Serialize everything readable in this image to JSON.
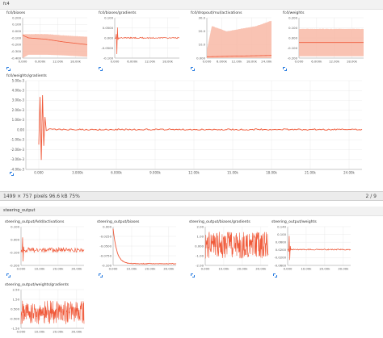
{
  "viewer": {
    "info": "1499 × 757 pixels  96.6 kB  75%",
    "page": "2 / 9"
  },
  "sections": {
    "top": "fc4",
    "bottom": "steering_output"
  },
  "colors": {
    "series": "#f05a3a",
    "band": "#f8b9a6",
    "grid": "#e6e6e6",
    "axis": "#999999",
    "icon": "#2a7de1"
  },
  "chart_data": [
    {
      "id": "fc4-biases",
      "type": "area",
      "title": "fc4/biases",
      "x_ticks": [
        "0.000",
        "6.000k",
        "12.00k",
        "18.00k"
      ],
      "xlim": [
        0,
        22000
      ],
      "y_ticks": [
        "0.200",
        "0.100",
        "0.000",
        "-0.100",
        "-0.200",
        "-0.300",
        "-0.400"
      ],
      "ylim": [
        -0.4,
        0.2
      ],
      "band_upper": [
        [
          0,
          -0.04
        ],
        [
          2000,
          -0.04
        ],
        [
          8000,
          -0.04
        ],
        [
          14000,
          -0.06
        ],
        [
          22000,
          -0.08
        ]
      ],
      "band_lower": [
        [
          0,
          -0.4
        ],
        [
          2000,
          -0.35
        ],
        [
          8000,
          -0.35
        ],
        [
          14000,
          -0.36
        ],
        [
          22000,
          -0.38
        ]
      ],
      "line": [
        [
          0,
          -0.06
        ],
        [
          2000,
          -0.1
        ],
        [
          8000,
          -0.12
        ],
        [
          14000,
          -0.16
        ],
        [
          22000,
          -0.2
        ]
      ]
    },
    {
      "id": "fc4-biases-gradients",
      "type": "line",
      "title": "fc4/biases/gradients",
      "x_ticks": [
        "0.000",
        "6.000k",
        "12.00k",
        "18.00k"
      ],
      "xlim": [
        0,
        22000
      ],
      "y_ticks": [
        "0.100",
        "0.0500",
        "0.000",
        "-0.0500",
        "-0.100"
      ],
      "ylim": [
        -0.1,
        0.1
      ],
      "spike_at": 800,
      "spike_range": [
        -0.1,
        0.08
      ],
      "steady": 0.0,
      "noise": 0.003
    },
    {
      "id": "fc4-dropout-activations",
      "type": "area",
      "title": "fc4/dropout/mul/activations",
      "x_ticks": [
        "0.000",
        "6.000k",
        "12.00k",
        "18.00k",
        "24.00k"
      ],
      "xlim": [
        0,
        26000
      ],
      "y_ticks": [
        "30.0",
        "20.0",
        "10.0",
        "0.000"
      ],
      "ylim": [
        0,
        30
      ],
      "band_upper": [
        [
          0,
          6
        ],
        [
          2000,
          24
        ],
        [
          8000,
          20
        ],
        [
          14000,
          22
        ],
        [
          20000,
          24
        ],
        [
          26000,
          28
        ]
      ],
      "band_lower": [
        [
          0,
          0
        ],
        [
          26000,
          0
        ]
      ],
      "line": [
        [
          0,
          1
        ],
        [
          26000,
          2
        ]
      ]
    },
    {
      "id": "fc4-weights",
      "type": "area",
      "title": "fc4/weights",
      "x_ticks": [
        "0.000",
        "6.000k",
        "12.00k",
        "18.00k"
      ],
      "xlim": [
        0,
        22000
      ],
      "y_ticks": [
        "0.200",
        "0.100",
        "0.000",
        "-0.100",
        "-0.200"
      ],
      "ylim": [
        -0.22,
        0.22
      ],
      "band_upper": [
        [
          0,
          0.1
        ],
        [
          22000,
          0.1
        ]
      ],
      "band_lower": [
        [
          0,
          -0.2
        ],
        [
          22000,
          -0.2
        ]
      ],
      "line": [
        [
          0,
          -0.05
        ],
        [
          22000,
          -0.05
        ]
      ]
    },
    {
      "id": "fc4-weights-gradients",
      "type": "line",
      "title": "fc4/weights/gradients",
      "x_ticks": [
        "0.000",
        "3.000k",
        "6.000k",
        "9.000k",
        "12.00k",
        "15.00k",
        "18.00k",
        "21.00k",
        "24.00k"
      ],
      "xlim": [
        -1000,
        25000
      ],
      "y_ticks": [
        "5.00e-3",
        "4.00e-3",
        "3.00e-3",
        "2.00e-3",
        "1.00e-3",
        "0.00",
        "-1.00e-3",
        "-2.00e-3",
        "-3.00e-3",
        "-4.00e-3"
      ],
      "ylim": [
        -0.0045,
        0.0055
      ],
      "spike_at": 200,
      "spike_range": [
        -0.0035,
        0.005
      ],
      "steady": 0.0,
      "noise": 8e-05
    },
    {
      "id": "steering-add-activations",
      "type": "line",
      "title": "steering_output/Add/activations",
      "x_ticks": [
        "0.000",
        "10.00k",
        "20.00k",
        "30.00k"
      ],
      "xlim": [
        0,
        34000
      ],
      "y_ticks": [
        "0.100",
        "0.000",
        "-0.100",
        "-0.200"
      ],
      "ylim": [
        -0.2,
        0.15
      ],
      "spike_at": 1000,
      "spike_range": [
        -0.2,
        0.1
      ],
      "steady": -0.06,
      "noise": 0.02
    },
    {
      "id": "steering-biases",
      "type": "decay",
      "title": "steering_output/biases",
      "x_ticks": [
        "0.000",
        "10.00k",
        "20.00k",
        "30.00k"
      ],
      "xlim": [
        0,
        34000
      ],
      "y_ticks": [
        "0.000",
        "-0.0250",
        "-0.0500",
        "-0.0750",
        "-0.100"
      ],
      "ylim": [
        -0.11,
        0.005
      ],
      "start": 0.0,
      "end": -0.105,
      "tau": 2000
    },
    {
      "id": "steering-biases-gradients",
      "type": "noise",
      "title": "steering_output/biases/gradients",
      "x_ticks": [
        "0.000",
        "10.00k",
        "20.00k",
        "30.00k"
      ],
      "xlim": [
        0,
        34000
      ],
      "y_ticks": [
        "2.00",
        "1.00",
        "0.000",
        "-1.00",
        "-2.00"
      ],
      "ylim": [
        -2.4,
        2.2
      ],
      "amplitude": 1.6
    },
    {
      "id": "steering-weights",
      "type": "line",
      "title": "steering_output/weights",
      "x_ticks": [
        "0.000",
        "10.00k",
        "20.00k",
        "30.00k"
      ],
      "xlim": [
        0,
        34000
      ],
      "y_ticks": [
        "0.140",
        "0.100",
        "0.0600",
        "0.0200",
        "-0.0200",
        "-0.0600"
      ],
      "ylim": [
        -0.07,
        0.15
      ],
      "spike_at": 1000,
      "spike_range": [
        -0.06,
        0.13
      ],
      "steady": 0.02,
      "noise": 0.003
    },
    {
      "id": "steering-weights-gradients",
      "type": "noise",
      "title": "steering_output/weights/gradients",
      "x_ticks": [
        "0.000",
        "10.00k",
        "20.00k",
        "30.00k"
      ],
      "xlim": [
        0,
        34000
      ],
      "y_ticks": [
        "2.50",
        "1.50",
        "0.500",
        "-0.500",
        "-1.50"
      ],
      "ylim": [
        -2.0,
        2.9
      ],
      "amplitude": 1.5
    }
  ]
}
